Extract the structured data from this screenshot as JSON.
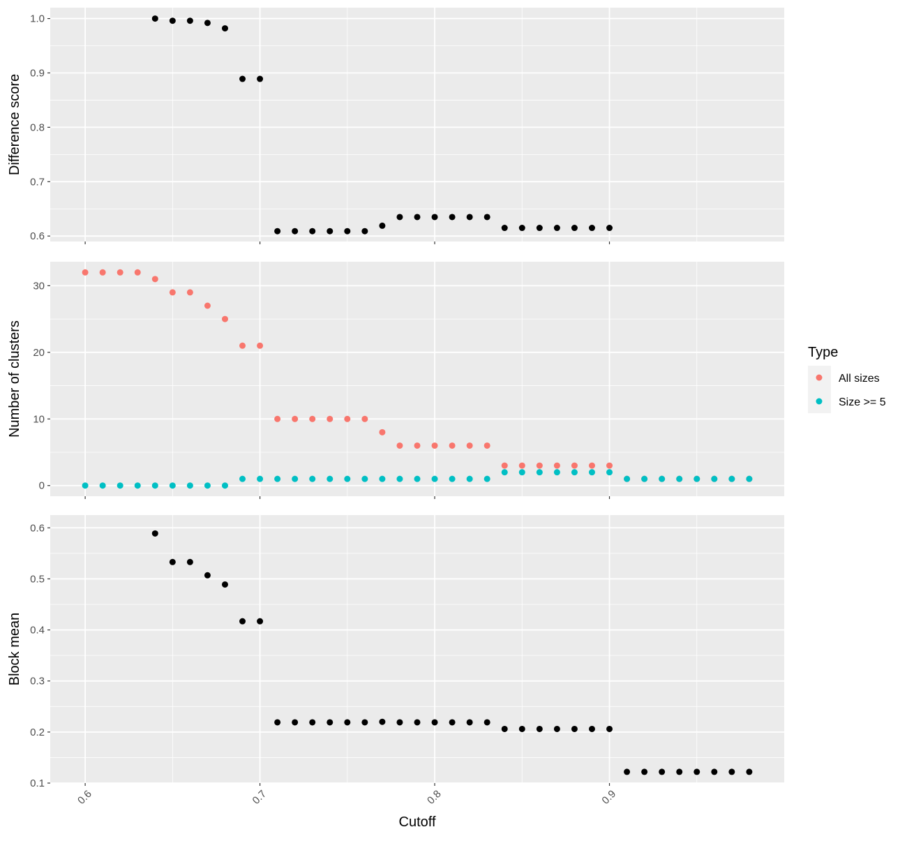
{
  "colors": {
    "panel_bg": "#ebebeb",
    "grid": "#ffffff",
    "tick": "#333333",
    "all_sizes": "#f8766d",
    "size_ge_5": "#00bfc4",
    "single_series": "#000000",
    "legend_key_bg": "#f2f2f2"
  },
  "x_axis": {
    "title": "Cutoff",
    "ticks": [
      0.6,
      0.7,
      0.8,
      0.9
    ],
    "tick_labels": [
      "0.6",
      "0.7",
      "0.8",
      "0.9"
    ],
    "tick_label_angle": -45
  },
  "legend": {
    "title": "Type",
    "placement": "right",
    "entries": [
      {
        "label": "All sizes",
        "color": "#f8766d"
      },
      {
        "label": "Size >= 5",
        "color": "#00bfc4"
      }
    ]
  },
  "chart_data": [
    {
      "type": "scatter",
      "ylabel": "Difference score",
      "xlim": [
        0.58,
        1.0
      ],
      "ylim": [
        0.59,
        1.02
      ],
      "y_ticks": [
        0.6,
        0.7,
        0.8,
        0.9,
        1.0
      ],
      "y_tick_labels": [
        "0.6",
        "0.7",
        "0.8",
        "0.9",
        "1.0"
      ],
      "grid": true,
      "series": [
        {
          "x": [
            0.64,
            0.65,
            0.66,
            0.67,
            0.68,
            0.69,
            0.7,
            0.71,
            0.72,
            0.73,
            0.74,
            0.75,
            0.76,
            0.77,
            0.78,
            0.79,
            0.8,
            0.81,
            0.82,
            0.83,
            0.84,
            0.85,
            0.86,
            0.87,
            0.88,
            0.89,
            0.9
          ],
          "y": [
            1.0,
            0.996,
            0.996,
            0.992,
            0.982,
            0.889,
            0.889,
            0.609,
            0.609,
            0.609,
            0.609,
            0.609,
            0.609,
            0.619,
            0.635,
            0.635,
            0.635,
            0.635,
            0.635,
            0.635,
            0.615,
            0.615,
            0.615,
            0.615,
            0.615,
            0.615,
            0.615
          ]
        }
      ]
    },
    {
      "type": "scatter",
      "ylabel": "Number of clusters",
      "xlim": [
        0.58,
        1.0
      ],
      "ylim": [
        -1.6,
        33.6
      ],
      "y_ticks": [
        0,
        10,
        20,
        30
      ],
      "y_tick_labels": [
        "0",
        "10",
        "20",
        "30"
      ],
      "grid": true,
      "series": [
        {
          "name": "All sizes",
          "x": [
            0.6,
            0.61,
            0.62,
            0.63,
            0.64,
            0.65,
            0.66,
            0.67,
            0.68,
            0.69,
            0.7,
            0.71,
            0.72,
            0.73,
            0.74,
            0.75,
            0.76,
            0.77,
            0.78,
            0.79,
            0.8,
            0.81,
            0.82,
            0.83,
            0.84,
            0.85,
            0.86,
            0.87,
            0.88,
            0.89,
            0.9,
            0.91,
            0.92,
            0.93,
            0.94,
            0.95,
            0.96,
            0.97,
            0.98
          ],
          "y": [
            32,
            32,
            32,
            32,
            31,
            29,
            29,
            27,
            25,
            21,
            21,
            10,
            10,
            10,
            10,
            10,
            10,
            8,
            6,
            6,
            6,
            6,
            6,
            6,
            3,
            3,
            3,
            3,
            3,
            3,
            3,
            1,
            1,
            1,
            1,
            1,
            1,
            1,
            1
          ]
        },
        {
          "name": "Size >= 5",
          "x": [
            0.6,
            0.61,
            0.62,
            0.63,
            0.64,
            0.65,
            0.66,
            0.67,
            0.68,
            0.69,
            0.7,
            0.71,
            0.72,
            0.73,
            0.74,
            0.75,
            0.76,
            0.77,
            0.78,
            0.79,
            0.8,
            0.81,
            0.82,
            0.83,
            0.84,
            0.85,
            0.86,
            0.87,
            0.88,
            0.89,
            0.9,
            0.91,
            0.92,
            0.93,
            0.94,
            0.95,
            0.96,
            0.97,
            0.98
          ],
          "y": [
            0,
            0,
            0,
            0,
            0,
            0,
            0,
            0,
            0,
            1,
            1,
            1,
            1,
            1,
            1,
            1,
            1,
            1,
            1,
            1,
            1,
            1,
            1,
            1,
            2,
            2,
            2,
            2,
            2,
            2,
            2,
            1,
            1,
            1,
            1,
            1,
            1,
            1,
            1
          ]
        }
      ]
    },
    {
      "type": "scatter",
      "ylabel": "Block mean",
      "xlim": [
        0.58,
        1.0
      ],
      "ylim": [
        0.1,
        0.625
      ],
      "y_ticks": [
        0.1,
        0.2,
        0.3,
        0.4,
        0.5,
        0.6
      ],
      "y_tick_labels": [
        "0.1",
        "0.2",
        "0.3",
        "0.4",
        "0.5",
        "0.6"
      ],
      "grid": true,
      "series": [
        {
          "x": [
            0.64,
            0.65,
            0.66,
            0.67,
            0.68,
            0.69,
            0.7,
            0.71,
            0.72,
            0.73,
            0.74,
            0.75,
            0.76,
            0.77,
            0.78,
            0.79,
            0.8,
            0.81,
            0.82,
            0.83,
            0.84,
            0.85,
            0.86,
            0.87,
            0.88,
            0.89,
            0.9,
            0.91,
            0.92,
            0.93,
            0.94,
            0.95,
            0.96,
            0.97,
            0.98
          ],
          "y": [
            0.589,
            0.533,
            0.533,
            0.507,
            0.489,
            0.417,
            0.417,
            0.219,
            0.219,
            0.219,
            0.219,
            0.219,
            0.219,
            0.22,
            0.219,
            0.219,
            0.219,
            0.219,
            0.219,
            0.219,
            0.206,
            0.206,
            0.206,
            0.206,
            0.206,
            0.206,
            0.206,
            0.122,
            0.122,
            0.122,
            0.122,
            0.122,
            0.122,
            0.122,
            0.122
          ]
        }
      ]
    }
  ]
}
